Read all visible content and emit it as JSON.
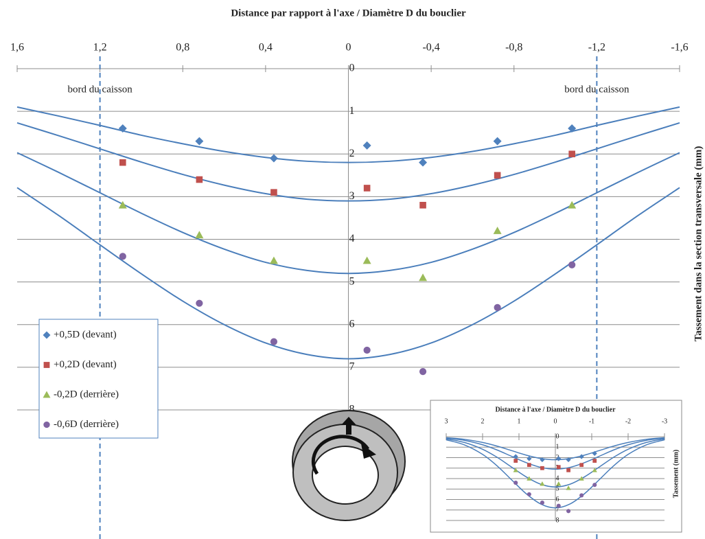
{
  "chart_data": [
    {
      "type": "scatter",
      "xlabel": "Distance par rapport à l'axe / Diamètre D du bouclier",
      "ylabel": "Tassement dans la section transversale (mm)",
      "xlim": [
        1.6,
        -1.6
      ],
      "xticks": [
        {
          "value": 1.6,
          "label": "1,6"
        },
        {
          "value": 1.2,
          "label": "1,2"
        },
        {
          "value": 0.8,
          "label": "0,8"
        },
        {
          "value": 0.4,
          "label": "0,4"
        },
        0,
        {
          "value": -0.4,
          "label": "-0,4"
        },
        {
          "value": -0.8,
          "label": "-0,8"
        },
        {
          "value": -1.2,
          "label": "-1,2"
        },
        {
          "value": -1.6,
          "label": "-1,6"
        }
      ],
      "ylim": [
        0,
        8
      ],
      "yticks": [
        0,
        1,
        2,
        3,
        4,
        5,
        6,
        7,
        8
      ],
      "y_inverted": true,
      "grid": true,
      "legend": "left",
      "x": [
        1.09,
        0.72,
        0.36,
        -0.09,
        -0.36,
        -0.72,
        -1.08
      ],
      "series": [
        {
          "name": "+0,5D (devant)",
          "color": "#4f81bd",
          "marker": "diamond",
          "values": [
            1.4,
            1.7,
            2.1,
            1.8,
            2.2,
            1.7,
            1.4
          ]
        },
        {
          "name": "+0,2D (devant)",
          "color": "#c0504d",
          "marker": "square",
          "values": [
            2.2,
            2.6,
            2.9,
            2.8,
            3.2,
            2.5,
            2.0
          ]
        },
        {
          "name": "-0,2D (derrière)",
          "color": "#9bbb59",
          "marker": "triangle",
          "values": [
            3.2,
            3.9,
            4.5,
            4.5,
            4.9,
            3.8,
            3.2
          ]
        },
        {
          "name": "-0,6D (derrière)",
          "color": "#8064a2",
          "marker": "circle",
          "values": [
            4.4,
            5.5,
            6.4,
            6.6,
            7.1,
            5.6,
            4.6
          ]
        }
      ],
      "fit_x": [
        1.6,
        1.4,
        1.2,
        1.0,
        0.8,
        0.6,
        0.4,
        0.2,
        0,
        -0.2,
        -0.4,
        -0.6,
        -0.8,
        -1.0,
        -1.2,
        -1.4,
        -1.6
      ],
      "fit_color": "#4a7ebb",
      "fit_curves": [
        {
          "values": [
            0.9,
            1.11,
            1.33,
            1.56,
            1.76,
            1.94,
            2.08,
            2.17,
            2.2,
            2.17,
            2.08,
            1.94,
            1.76,
            1.56,
            1.33,
            1.11,
            0.9
          ]
        },
        {
          "values": [
            1.27,
            1.57,
            1.88,
            2.19,
            2.48,
            2.73,
            2.93,
            3.06,
            3.1,
            3.06,
            2.93,
            2.73,
            2.48,
            2.19,
            1.88,
            1.57,
            1.27
          ]
        },
        {
          "values": [
            1.97,
            2.43,
            2.91,
            3.39,
            3.84,
            4.23,
            4.54,
            4.73,
            4.8,
            4.73,
            4.54,
            4.23,
            3.84,
            3.39,
            2.91,
            2.43,
            1.97
          ]
        },
        {
          "values": [
            2.79,
            3.44,
            4.13,
            4.81,
            5.45,
            6.0,
            6.43,
            6.7,
            6.8,
            6.7,
            6.43,
            6.0,
            5.45,
            4.81,
            4.13,
            3.44,
            2.79
          ]
        }
      ],
      "annotations": [
        {
          "text": "bord du caisson",
          "x": 1.2
        },
        {
          "text": "bord du caisson",
          "x": -1.2
        }
      ]
    },
    {
      "type": "scatter",
      "xlabel": "Distance à l'axe / Diamètre D du bouclier",
      "ylabel": "Tassement (mm)",
      "xlim": [
        3,
        -3
      ],
      "xticks": [
        3,
        2,
        1,
        0,
        -1,
        -2,
        -3
      ],
      "ylim": [
        0,
        8
      ],
      "yticks": [
        0,
        1,
        2,
        3,
        4,
        5,
        6,
        7,
        8
      ],
      "y_inverted": true,
      "grid": true,
      "x": [
        1.09,
        0.72,
        0.36,
        -0.09,
        -0.36,
        -0.72,
        -1.08
      ],
      "series": [
        {
          "color": "#4f81bd",
          "marker": "diamond",
          "values": [
            1.9,
            2.1,
            2.2,
            2.1,
            2.2,
            1.9,
            1.6
          ]
        },
        {
          "color": "#c0504d",
          "marker": "square",
          "values": [
            2.3,
            2.7,
            3.0,
            2.9,
            3.2,
            2.7,
            2.3
          ]
        },
        {
          "color": "#9bbb59",
          "marker": "triangle",
          "values": [
            3.2,
            4.0,
            4.5,
            4.5,
            4.9,
            4.0,
            3.2
          ]
        },
        {
          "color": "#8064a2",
          "marker": "circle",
          "values": [
            4.4,
            5.5,
            6.3,
            6.6,
            7.1,
            5.6,
            4.6
          ]
        }
      ],
      "fit_x": [
        3,
        2.5,
        2,
        1.6,
        1.2,
        0.8,
        0.4,
        0,
        -0.4,
        -0.8,
        -1.2,
        -1.6,
        -2,
        -2.5,
        -3
      ],
      "fit_color": "#4a7ebb",
      "fit_curves": [
        {
          "values": [
            0.1,
            0.25,
            0.55,
            0.9,
            1.33,
            1.76,
            2.08,
            2.2,
            2.08,
            1.76,
            1.33,
            0.9,
            0.55,
            0.25,
            0.1
          ]
        },
        {
          "values": [
            0.14,
            0.35,
            0.77,
            1.27,
            1.88,
            2.48,
            2.93,
            3.1,
            2.93,
            2.48,
            1.88,
            1.27,
            0.77,
            0.35,
            0.14
          ]
        },
        {
          "values": [
            0.21,
            0.55,
            1.2,
            1.97,
            2.91,
            3.84,
            4.54,
            4.8,
            4.54,
            3.84,
            2.91,
            1.97,
            1.2,
            0.55,
            0.21
          ]
        },
        {
          "values": [
            0.3,
            0.78,
            1.69,
            2.79,
            4.13,
            5.45,
            6.43,
            6.8,
            6.43,
            5.45,
            4.13,
            2.79,
            1.69,
            0.78,
            0.3
          ]
        }
      ]
    }
  ]
}
